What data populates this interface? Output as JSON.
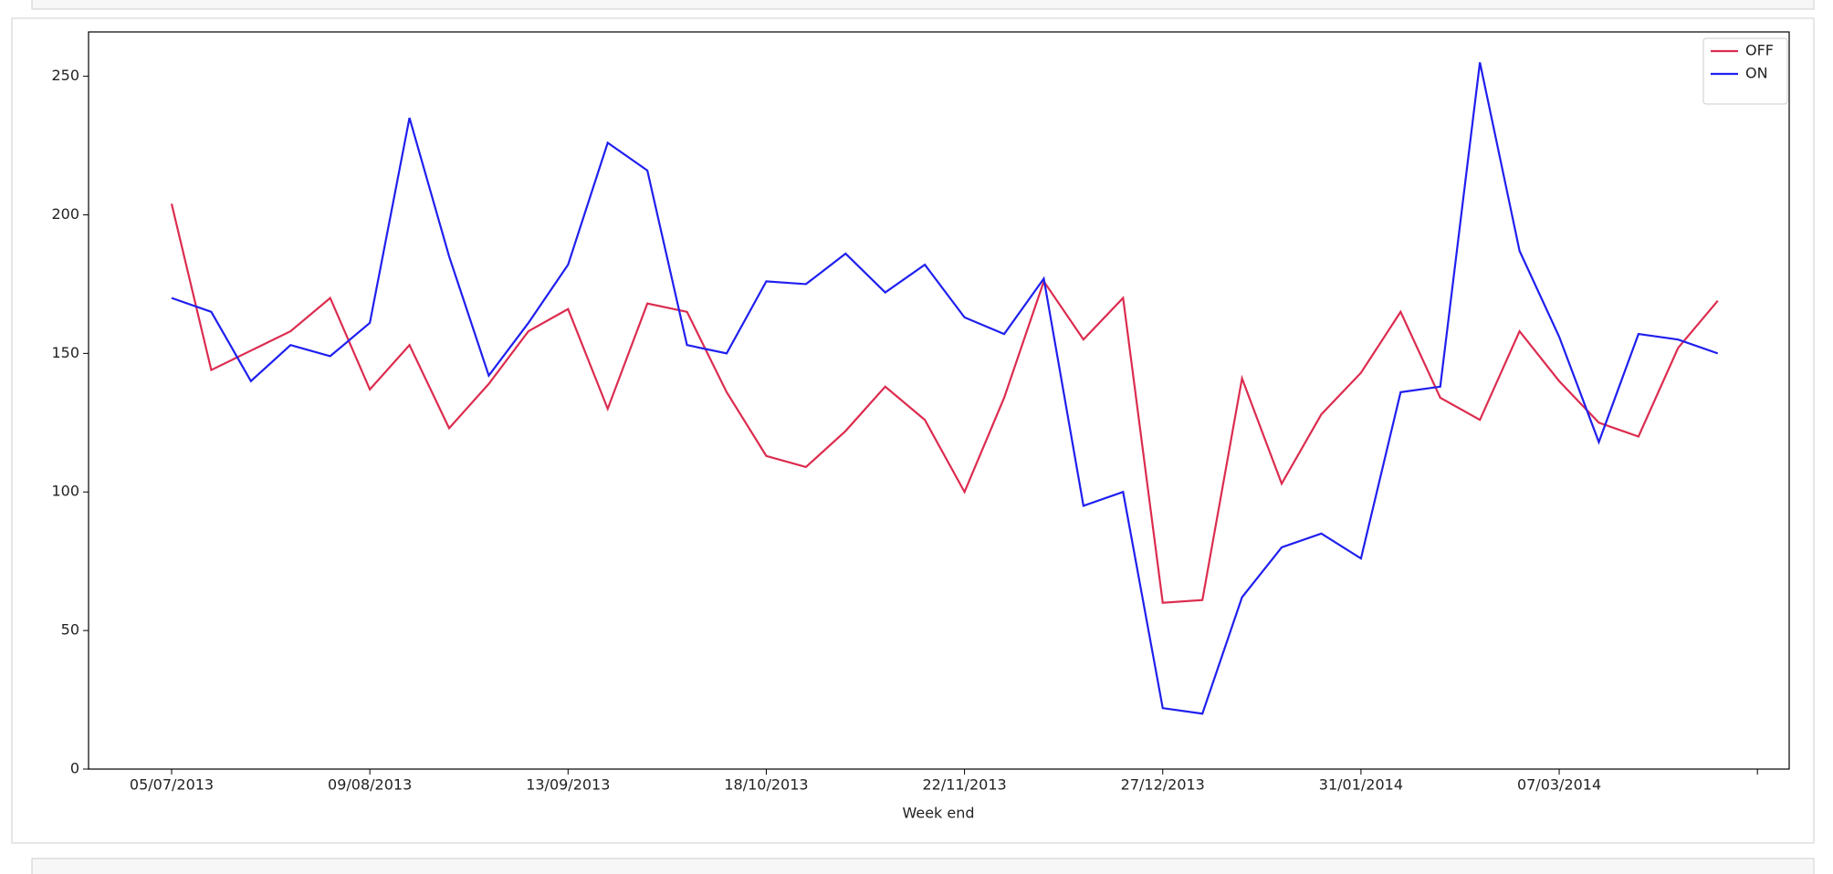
{
  "chart_data": {
    "type": "line",
    "xlabel": "Week end",
    "categories": [
      "05/07/2013",
      null,
      null,
      null,
      null,
      "09/08/2013",
      null,
      null,
      null,
      null,
      "13/09/2013",
      null,
      null,
      null,
      null,
      "18/10/2013",
      null,
      null,
      null,
      null,
      "22/11/2013",
      null,
      null,
      null,
      null,
      "27/12/2013",
      null,
      null,
      null,
      null,
      "31/01/2014",
      null,
      null,
      null,
      null,
      "07/03/2014",
      null,
      null,
      null,
      null
    ],
    "series": [
      {
        "name": "OFF",
        "color": "#dc2c4f",
        "values": [
          204,
          144,
          151,
          158,
          170,
          137,
          153,
          123,
          139,
          158,
          166,
          130,
          168,
          165,
          136,
          113,
          109,
          122,
          138,
          126,
          100,
          134,
          176,
          155,
          170,
          60,
          61,
          141,
          103,
          128,
          143,
          165,
          134,
          126,
          158,
          140,
          125,
          120,
          152,
          169
        ]
      },
      {
        "name": "ON",
        "color": "#1f1fef",
        "values": [
          170,
          165,
          140,
          153,
          149,
          161,
          235,
          185,
          142,
          161,
          182,
          226,
          216,
          153,
          150,
          176,
          175,
          186,
          172,
          182,
          163,
          157,
          177,
          95,
          100,
          22,
          20,
          62,
          80,
          85,
          76,
          136,
          138,
          255,
          187,
          156,
          118,
          157,
          155,
          150
        ]
      }
    ],
    "ylim": [
      0,
      266
    ],
    "yticks": [
      0,
      50,
      100,
      150,
      200,
      250
    ],
    "legend": "upper right"
  }
}
